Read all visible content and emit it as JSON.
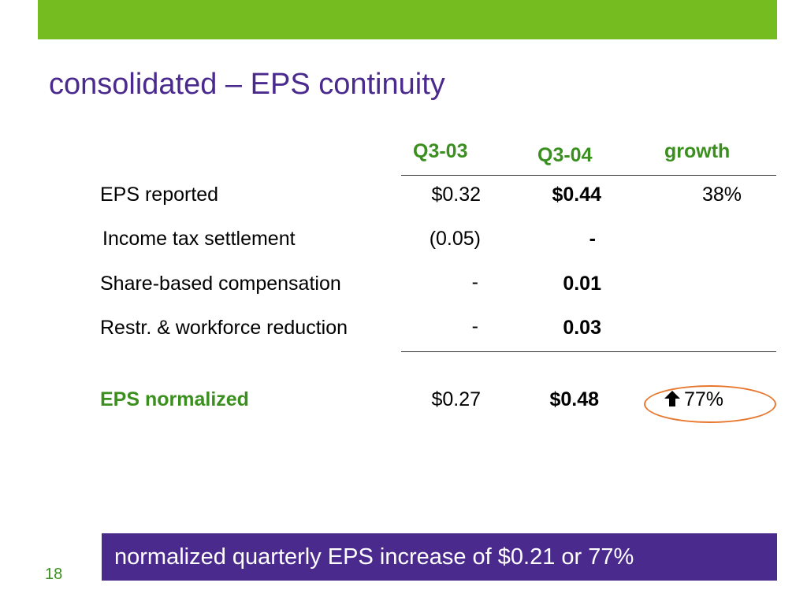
{
  "slide": {
    "title": "consolidated – EPS continuity",
    "page_number": "18",
    "callout": "normalized quarterly EPS increase of $0.21 or 77%"
  },
  "table": {
    "columns": [
      "Q3-03",
      "Q3-04",
      "growth"
    ],
    "rows": [
      {
        "label": "EPS reported",
        "q3_03": "$0.32",
        "q3_04": "$0.44",
        "growth": "38%"
      },
      {
        "label": "Income tax settlement",
        "q3_03": "(0.05)",
        "q3_04": "-",
        "growth": ""
      },
      {
        "label": "Share-based compensation",
        "q3_03": "-",
        "q3_04": "0.01",
        "growth": ""
      },
      {
        "label": "Restr. & workforce reduction",
        "q3_03": "-",
        "q3_04": "0.03",
        "growth": ""
      }
    ],
    "total": {
      "label": "EPS normalized",
      "q3_03": "$0.27",
      "q3_04": "$0.48",
      "growth": "77%"
    }
  },
  "icons": {
    "growth_arrow": "up-arrow-icon"
  },
  "colors": {
    "accent_green": "#74bc1f",
    "header_green": "#3b8f1f",
    "title_purple": "#4b2a8e",
    "highlight_orange": "#e8772e"
  }
}
